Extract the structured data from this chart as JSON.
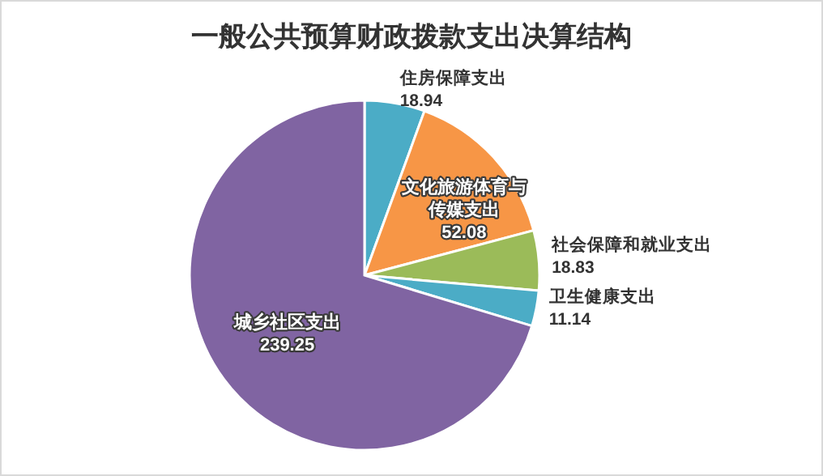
{
  "chart_data": {
    "type": "pie",
    "title": "一般公共预算财政拨款支出决算结构",
    "categories": [
      "住房保障支出",
      "文化旅游体育与传媒支出",
      "社会保障和就业支出",
      "卫生健康支出",
      "城乡社区支出"
    ],
    "values": [
      18.94,
      52.08,
      18.83,
      11.14,
      239.25
    ],
    "colors": [
      "#4bacc6",
      "#f79646",
      "#9bbb59",
      "#4bacc6",
      "#8064a2"
    ],
    "data_labels": true
  }
}
